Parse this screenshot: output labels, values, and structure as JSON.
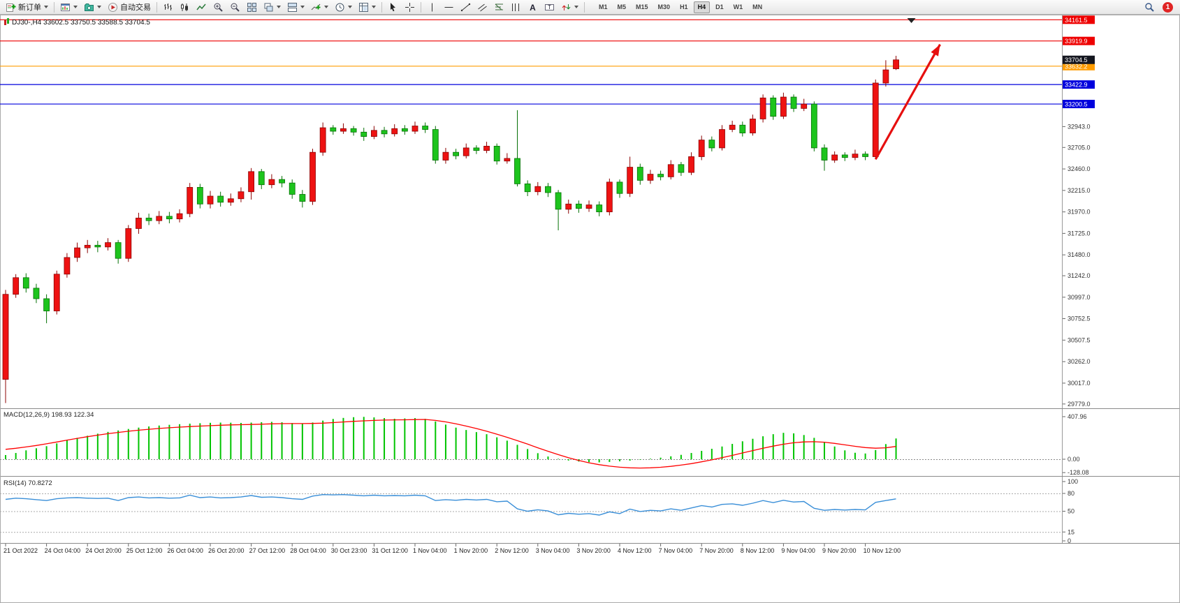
{
  "toolbar": {
    "new_order_label": "新订单",
    "auto_trading_label": "自动交易",
    "timeframes": [
      "M1",
      "M5",
      "M15",
      "M30",
      "H1",
      "H4",
      "D1",
      "W1",
      "MN"
    ],
    "active_timeframe": "H4",
    "notification_count": "1"
  },
  "chart_data": {
    "type": "candlestick",
    "symbol": "DJ30-",
    "period": "H4",
    "title": "DJ30-,H4 33602.5 33750.5 33588.5 33704.5",
    "ohlc": {
      "open": "33602.5",
      "high": "33750.5",
      "low": "33588.5",
      "close": "33704.5"
    },
    "bull_color": "#ee1212",
    "bull_border": "#8c0404",
    "bear_color": "#1dc41d",
    "bear_border": "#067106",
    "ylim": [
      29730,
      34180
    ],
    "label_step": 4,
    "price_ticks": [
      32943.0,
      32705.0,
      32460.0,
      32215.0,
      31970.0,
      31725.0,
      31480.0,
      31242.0,
      30997.0,
      30752.5,
      30507.5,
      30262.0,
      30017.0,
      29779.0
    ],
    "hlines": [
      {
        "price": 34161.5,
        "label": "34161.5",
        "color": "#ee0000"
      },
      {
        "price": 33919.9,
        "label": "33919.9",
        "color": "#ee0000"
      },
      {
        "price": 33632.2,
        "label": "33632.2",
        "color": "#ff9c00"
      },
      {
        "price": 33422.9,
        "label": "33422.9",
        "color": "#0000dd"
      },
      {
        "price": 33200.5,
        "label": "33200.5",
        "color": "#0000dd"
      }
    ],
    "current_price": {
      "value": 33704.5,
      "label": "33704.5",
      "bg": "#14161f"
    },
    "arrow": {
      "bar1": 85.0,
      "price1": 32570,
      "bar2": 91.3,
      "price2": 33880,
      "color": "#e60f0f"
    },
    "time_labels": [
      "21 Oct 2022",
      "24 Oct 04:00",
      "24 Oct 20:00",
      "25 Oct 12:00",
      "26 Oct 04:00",
      "26 Oct 20:00",
      "27 Oct 12:00",
      "28 Oct 04:00",
      "30 Oct 23:00",
      "31 Oct 12:00",
      "1 Nov 04:00",
      "1 Nov 20:00",
      "2 Nov 12:00",
      "3 Nov 04:00",
      "3 Nov 20:00",
      "4 Nov 12:00",
      "7 Nov 04:00",
      "7 Nov 20:00",
      "8 Nov 12:00",
      "9 Nov 04:00",
      "9 Nov 20:00",
      "10 Nov 12:00"
    ],
    "candles": [
      [
        30060,
        31080,
        29790,
        31030
      ],
      [
        31030,
        31260,
        30990,
        31220
      ],
      [
        31220,
        31270,
        31050,
        31100
      ],
      [
        31100,
        31150,
        30930,
        30980
      ],
      [
        30980,
        31030,
        30700,
        30840
      ],
      [
        30840,
        31300,
        30800,
        31260
      ],
      [
        31260,
        31500,
        31220,
        31450
      ],
      [
        31450,
        31620,
        31400,
        31560
      ],
      [
        31560,
        31650,
        31500,
        31590
      ],
      [
        31590,
        31640,
        31510,
        31570
      ],
      [
        31570,
        31670,
        31530,
        31620
      ],
      [
        31620,
        31650,
        31380,
        31440
      ],
      [
        31440,
        31820,
        31400,
        31780
      ],
      [
        31780,
        31960,
        31720,
        31900
      ],
      [
        31900,
        31950,
        31820,
        31870
      ],
      [
        31870,
        31980,
        31830,
        31920
      ],
      [
        31920,
        31970,
        31840,
        31890
      ],
      [
        31890,
        32000,
        31850,
        31950
      ],
      [
        31950,
        32300,
        31910,
        32250
      ],
      [
        32250,
        32290,
        32010,
        32060
      ],
      [
        32060,
        32210,
        32010,
        32150
      ],
      [
        32150,
        32200,
        32030,
        32080
      ],
      [
        32080,
        32180,
        32040,
        32120
      ],
      [
        32120,
        32250,
        32080,
        32200
      ],
      [
        32200,
        32470,
        32110,
        32430
      ],
      [
        32430,
        32460,
        32230,
        32280
      ],
      [
        32280,
        32400,
        32240,
        32340
      ],
      [
        32340,
        32380,
        32250,
        32300
      ],
      [
        32300,
        32340,
        32120,
        32170
      ],
      [
        32170,
        32220,
        32020,
        32090
      ],
      [
        32090,
        32690,
        32050,
        32650
      ],
      [
        32650,
        32990,
        32610,
        32930
      ],
      [
        32930,
        32960,
        32850,
        32890
      ],
      [
        32890,
        32980,
        32860,
        32920
      ],
      [
        32920,
        32950,
        32840,
        32880
      ],
      [
        32880,
        32930,
        32780,
        32830
      ],
      [
        32830,
        32950,
        32800,
        32900
      ],
      [
        32900,
        32940,
        32820,
        32860
      ],
      [
        32860,
        32970,
        32830,
        32920
      ],
      [
        32920,
        32960,
        32850,
        32890
      ],
      [
        32890,
        33000,
        32860,
        32950
      ],
      [
        32950,
        32990,
        32870,
        32910
      ],
      [
        32910,
        32950,
        32520,
        32560
      ],
      [
        32560,
        32700,
        32520,
        32650
      ],
      [
        32650,
        32690,
        32570,
        32610
      ],
      [
        32610,
        32750,
        32580,
        32700
      ],
      [
        32700,
        32730,
        32630,
        32670
      ],
      [
        32670,
        32770,
        32640,
        32720
      ],
      [
        32720,
        32750,
        32510,
        32550
      ],
      [
        32550,
        32640,
        32520,
        32580
      ],
      [
        32580,
        33130,
        32260,
        32290
      ],
      [
        32290,
        32330,
        32150,
        32200
      ],
      [
        32200,
        32310,
        32160,
        32260
      ],
      [
        32260,
        32300,
        32140,
        32190
      ],
      [
        32190,
        32220,
        31760,
        32000
      ],
      [
        32000,
        32110,
        31950,
        32060
      ],
      [
        32060,
        32100,
        31960,
        32010
      ],
      [
        32010,
        32100,
        31970,
        32050
      ],
      [
        32050,
        32090,
        31920,
        31970
      ],
      [
        31970,
        32350,
        31930,
        32310
      ],
      [
        32310,
        32340,
        32130,
        32180
      ],
      [
        32180,
        32600,
        32140,
        32480
      ],
      [
        32480,
        32520,
        32280,
        32330
      ],
      [
        32330,
        32450,
        32290,
        32400
      ],
      [
        32400,
        32440,
        32330,
        32370
      ],
      [
        32370,
        32560,
        32340,
        32510
      ],
      [
        32510,
        32540,
        32380,
        32420
      ],
      [
        32420,
        32650,
        32390,
        32600
      ],
      [
        32600,
        32840,
        32560,
        32790
      ],
      [
        32790,
        32830,
        32660,
        32700
      ],
      [
        32700,
        32960,
        32670,
        32910
      ],
      [
        32910,
        33010,
        32880,
        32960
      ],
      [
        32960,
        33000,
        32830,
        32870
      ],
      [
        32870,
        33080,
        32840,
        33030
      ],
      [
        33030,
        33310,
        32990,
        33270
      ],
      [
        33270,
        33300,
        33020,
        33060
      ],
      [
        33060,
        33330,
        33030,
        33280
      ],
      [
        33280,
        33310,
        33110,
        33150
      ],
      [
        33150,
        33260,
        33120,
        33200
      ],
      [
        33200,
        33230,
        32660,
        32700
      ],
      [
        32700,
        32740,
        32440,
        32560
      ],
      [
        32560,
        32660,
        32530,
        32620
      ],
      [
        32620,
        32650,
        32550,
        32590
      ],
      [
        32590,
        32680,
        32560,
        32630
      ],
      [
        32630,
        32660,
        32560,
        32600
      ],
      [
        32600,
        33480,
        32570,
        33440
      ],
      [
        33440,
        33700,
        33400,
        33590
      ],
      [
        33602.5,
        33750.5,
        33588.5,
        33704.5
      ]
    ],
    "macd": {
      "name": "MACD(12,26,9)",
      "value_main": "198.93",
      "value_signal": "122.34",
      "color": "#00c400",
      "signal_color": "#ff0000",
      "ticks": [
        "407.96",
        "0.00",
        "-128.08"
      ],
      "tick_values": [
        407.96,
        0,
        -128.08
      ],
      "values": [
        40,
        60,
        85,
        105,
        125,
        152,
        180,
        205,
        225,
        245,
        262,
        276,
        290,
        303,
        314,
        323,
        330,
        336,
        341,
        345,
        349,
        351,
        350,
        348,
        351,
        355,
        358,
        354,
        347,
        340,
        352,
        370,
        386,
        396,
        403,
        406,
        401,
        394,
        388,
        391,
        394,
        387,
        362,
        332,
        303,
        280,
        260,
        240,
        210,
        178,
        138,
        98,
        58,
        26,
        4,
        -12,
        -22,
        -28,
        -30,
        -26,
        -20,
        -13,
        -5,
        5,
        15,
        28,
        42,
        60,
        80,
        100,
        122,
        147,
        172,
        196,
        220,
        240,
        253,
        248,
        232,
        205,
        165,
        122,
        85,
        62,
        55,
        88,
        145,
        199
      ],
      "signal": [
        95,
        105,
        118,
        132,
        148,
        165,
        183,
        200,
        216,
        231,
        245,
        257,
        268,
        278,
        287,
        295,
        302,
        308,
        313,
        318,
        322,
        326,
        329,
        331,
        333,
        336,
        339,
        341,
        342,
        342,
        343,
        346,
        351,
        357,
        363,
        368,
        372,
        375,
        377,
        378,
        380,
        381,
        372,
        358,
        340,
        318,
        294,
        268,
        240,
        210,
        178,
        145,
        110,
        76,
        44,
        14,
        -12,
        -34,
        -52,
        -66,
        -76,
        -82,
        -84,
        -82,
        -77,
        -68,
        -56,
        -42,
        -25,
        -6,
        15,
        37,
        60,
        83,
        105,
        126,
        144,
        158,
        166,
        168,
        163,
        152,
        138,
        124,
        112,
        106,
        110,
        122.34
      ]
    },
    "rsi": {
      "name": "RSI(14)",
      "value": "70.8272",
      "color": "#3a8fd8",
      "ticks": [
        "100",
        "80",
        "50",
        "15",
        "0"
      ],
      "tick_values": [
        100,
        80,
        50,
        15,
        0
      ],
      "levels": [
        80,
        50,
        15
      ],
      "values": [
        70,
        72,
        71,
        69.5,
        68,
        71,
        72.5,
        73,
        72,
        71.5,
        72,
        68,
        73,
        74,
        72.5,
        73,
        72,
        72.5,
        77,
        73,
        74,
        72.5,
        73,
        74,
        76.5,
        73.5,
        74,
        73,
        71,
        70,
        75.5,
        78,
        77.5,
        78,
        77,
        76,
        77,
        76,
        76.5,
        76,
        77,
        76,
        68,
        69.5,
        68.5,
        70,
        69,
        70,
        66,
        67,
        54,
        50,
        52.5,
        50.5,
        44,
        46.5,
        45,
        46,
        43.5,
        49,
        46,
        53.5,
        49.5,
        51.5,
        50.5,
        54,
        51.5,
        55.5,
        59.5,
        57,
        61.5,
        62.5,
        60,
        63.5,
        68,
        64.5,
        68.5,
        65.5,
        66.5,
        55,
        51.5,
        53,
        52,
        53,
        52.2,
        65,
        68,
        70.8272
      ]
    }
  }
}
